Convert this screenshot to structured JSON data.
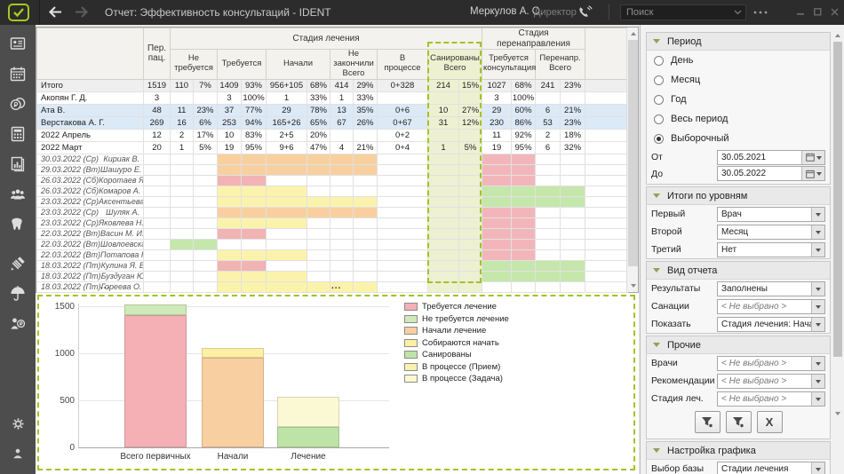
{
  "topbar": {
    "title": "Отчет: Эффективность консультаций  -  IDENT",
    "user_name": "Меркулов А. О.",
    "user_role": "Директор",
    "search_placeholder": "Поиск"
  },
  "sidebar": {
    "items": [
      "patient-card",
      "calendar",
      "payments",
      "calculator",
      "reports",
      "staff",
      "tooth",
      "implant",
      "insurance",
      "salary",
      "settings",
      "profile"
    ]
  },
  "table": {
    "palette": {
      "orange": "#f8d0a0",
      "red": "#f1b3b3",
      "yellow": "#fbf3ab",
      "green": "#c5e7ab",
      "pink": "#f2b6ba",
      "sanitized": "#edf1d2",
      "blue_row": "#dce9f7",
      "total_row": "#efefef",
      "dashed_highlight": "#9fc520"
    },
    "headers": {
      "perpats": "Пер.\nпац.",
      "stage_treatment": "Стадия лечения",
      "stage_redirect": "Стадия перенаправления",
      "columns": [
        {
          "label": "Не требуется",
          "span": 2
        },
        {
          "label": "Требуется",
          "span": 2
        },
        {
          "label": "Начали",
          "span": 2
        },
        {
          "label": "Не закончили\nВсего",
          "span": 2
        },
        {
          "label": "В\nпроцессе",
          "span": 1
        },
        {
          "label": "Санированы\nВсего",
          "span": 2,
          "san": true
        },
        {
          "label": "Требуется\nконсультация",
          "span": 2
        },
        {
          "label": "Перенапр.\nВсего",
          "span": 2
        }
      ]
    },
    "summary_rows": [
      {
        "label": "Итого",
        "bg": "total",
        "values": [
          "1519",
          "110",
          "7%",
          "1409",
          "93%",
          "956+105",
          "68%",
          "414",
          "29%",
          "0+328",
          "214",
          "15%",
          "1027",
          "68%",
          "241",
          "23%"
        ]
      },
      {
        "label": "Акопян Г. Д.",
        "bg": null,
        "values": [
          "3",
          "",
          "",
          "3",
          "100%",
          "1",
          "33%",
          "1",
          "33%",
          "",
          "",
          "",
          "3",
          "100%",
          "",
          ""
        ]
      },
      {
        "label": "Ата В.",
        "bg": "blue",
        "values": [
          "48",
          "11",
          "23%",
          "37",
          "77%",
          "29",
          "78%",
          "13",
          "35%",
          "0+6",
          "10",
          "27%",
          "29",
          "60%",
          "6",
          "21%"
        ]
      },
      {
        "label": "Верстакова А. Г.",
        "bg": "blue",
        "values": [
          "269",
          "16",
          "6%",
          "253",
          "94%",
          "165+26",
          "65%",
          "67",
          "26%",
          "0+67",
          "31",
          "12%",
          "230",
          "86%",
          "53",
          "23%"
        ]
      },
      {
        "label": "2022 Апрель",
        "bg": null,
        "values": [
          "12",
          "2",
          "17%",
          "10",
          "83%",
          "2+5",
          "20%",
          "",
          "",
          "0+2",
          "",
          "",
          "11",
          "92%",
          "2",
          "18%"
        ]
      },
      {
        "label": "2022 Март",
        "bg": null,
        "values": [
          "20",
          "1",
          "5%",
          "19",
          "95%",
          "9+6",
          "47%",
          "4",
          "21%",
          "0+4",
          "1",
          "5%",
          "19",
          "95%",
          "6",
          "32%"
        ]
      }
    ],
    "date_rows": [
      {
        "date": "30.03.2022 (Ср)",
        "doctor": "Кириак В.",
        "bands": [
          {
            "from": 3,
            "to": 8,
            "color": "orange"
          },
          {
            "from": 12,
            "to": 13,
            "color": "pink"
          }
        ]
      },
      {
        "date": "29.03.2022 (Вт)",
        "doctor": "Шашуро Е.",
        "bands": [
          {
            "from": 3,
            "to": 8,
            "color": "orange"
          },
          {
            "from": 12,
            "to": 13,
            "color": "pink"
          }
        ]
      },
      {
        "date": "26.03.2022 (Сб)",
        "doctor": "Коротаев Я. Р.",
        "bands": [
          {
            "from": 3,
            "to": 4,
            "color": "red"
          },
          {
            "from": 12,
            "to": 13,
            "color": "pink"
          }
        ]
      },
      {
        "date": "26.03.2022 (Сб)",
        "doctor": "Комаров А. С.",
        "bands": [
          {
            "from": 3,
            "to": 5,
            "color": "yellow"
          },
          {
            "from": 12,
            "to": 15,
            "color": "green"
          }
        ]
      },
      {
        "date": "23.03.2022 (Ср)",
        "doctor": "Аксентьева К. И.",
        "bands": [
          {
            "from": 3,
            "to": 8,
            "color": "yellow"
          },
          {
            "from": 12,
            "to": 15,
            "color": "green"
          }
        ]
      },
      {
        "date": "23.03.2022 (Ср)",
        "doctor": "Шуляк А.",
        "bands": [
          {
            "from": 3,
            "to": 8,
            "color": "orange"
          },
          {
            "from": 12,
            "to": 13,
            "color": "pink"
          }
        ]
      },
      {
        "date": "23.03.2022 (Ср)",
        "doctor": "Яковлева Н.",
        "bands": [
          {
            "from": 3,
            "to": 5,
            "color": "yellow"
          },
          {
            "from": 12,
            "to": 13,
            "color": "pink"
          }
        ]
      },
      {
        "date": "22.03.2022 (Вт)",
        "doctor": "Васин М. И.",
        "bands": [
          {
            "from": 3,
            "to": 4,
            "color": "red"
          },
          {
            "from": 12,
            "to": 13,
            "color": "pink"
          }
        ]
      },
      {
        "date": "22.03.2022 (Вт)",
        "doctor": "Шовлоевская К. С.",
        "bands": [
          {
            "from": 1,
            "to": 2,
            "color": "green"
          },
          {
            "from": 12,
            "to": 13,
            "color": "pink"
          }
        ]
      },
      {
        "date": "22.03.2022 (Вт)",
        "doctor": "Потапова К. В.",
        "bands": [
          {
            "from": 3,
            "to": 5,
            "color": "yellow"
          },
          {
            "from": 12,
            "to": 13,
            "color": "pink"
          }
        ]
      },
      {
        "date": "18.03.2022 (Пт)",
        "doctor": "Кулина Я. В.",
        "bands": [
          {
            "from": 3,
            "to": 4,
            "color": "red"
          },
          {
            "from": 12,
            "to": 15,
            "color": "green"
          }
        ]
      },
      {
        "date": "18.03.2022 (Пт)",
        "doctor": "Буздуган Ю. О.",
        "bands": [
          {
            "from": 3,
            "to": 5,
            "color": "yellow"
          },
          {
            "from": 12,
            "to": 15,
            "color": "green"
          }
        ]
      },
      {
        "date": "18.03.2022 (Пт)",
        "doctor": "Гореева О. А.",
        "bands": [
          {
            "from": 3,
            "to": 8,
            "color": "yellow"
          }
        ]
      }
    ],
    "truncation_indicator": "..."
  },
  "chart_data": {
    "type": "stacked-bar",
    "categories": [
      "Всего первичных",
      "Начали",
      "Лечение"
    ],
    "yticks": [
      0,
      500,
      1000,
      1500
    ],
    "ylim": [
      0,
      1500
    ],
    "grid": true,
    "legend_position": "top-right",
    "legend": [
      {
        "name": "Требуется лечение",
        "color": "#f4b0b5"
      },
      {
        "name": "Не требуется лечение",
        "color": "#cfe9b9"
      },
      {
        "name": "Начали лечение",
        "color": "#f8cfa0"
      },
      {
        "name": "Собираются начать",
        "color": "#fdefa5"
      },
      {
        "name": "Санированы",
        "color": "#bee3a7"
      },
      {
        "name": "В процессе (Прием)",
        "color": "#f7f2ae"
      },
      {
        "name": "В процессе (Задача)",
        "color": "#fbf9d3"
      }
    ],
    "bars": [
      {
        "category": "Всего первичных",
        "segments": [
          {
            "series": "Требуется лечение",
            "value": 1409
          },
          {
            "series": "Не требуется лечение",
            "value": 110
          }
        ]
      },
      {
        "category": "Начали",
        "segments": [
          {
            "series": "Начали лечение",
            "value": 956
          },
          {
            "series": "Собираются начать",
            "value": 105
          }
        ]
      },
      {
        "category": "Лечение",
        "segments": [
          {
            "series": "Санированы",
            "value": 214
          },
          {
            "series": "В процессе (Задача)",
            "value": 328
          }
        ]
      }
    ]
  },
  "panel": {
    "period": {
      "title": "Период",
      "radios": [
        {
          "label": "День",
          "checked": false
        },
        {
          "label": "Месяц",
          "checked": false
        },
        {
          "label": "Год",
          "checked": false
        },
        {
          "label": "Весь период",
          "checked": false
        },
        {
          "label": "Выборочный",
          "checked": true
        }
      ],
      "from_label": "От",
      "from_value": "30.05.2021",
      "to_label": "До",
      "to_value": "30.05.2022"
    },
    "levels": {
      "title": "Итоги по уровням",
      "rows": [
        {
          "label": "Первый",
          "value": "Врач"
        },
        {
          "label": "Второй",
          "value": "Месяц"
        },
        {
          "label": "Третий",
          "value": "Нет"
        }
      ]
    },
    "view": {
      "title": "Вид отчета",
      "rows": [
        {
          "label": "Результаты",
          "value": "Заполнены"
        },
        {
          "label": "Санации",
          "value": "< Не выбрано >"
        },
        {
          "label": "Показать",
          "value": "Стадия лечения: Начали"
        }
      ]
    },
    "other": {
      "title": "Прочие",
      "rows": [
        {
          "label": "Врачи",
          "value": "< Не выбрано >"
        },
        {
          "label": "Рекомендации",
          "value": "< Не выбрано >"
        },
        {
          "label": "Стадия леч.",
          "value": "< Не выбрано >"
        }
      ],
      "export_label": "X"
    },
    "chart_settings": {
      "title": "Настройка графика",
      "rows": [
        {
          "label": "Выбор базы",
          "value": "Стадии лечения"
        }
      ]
    }
  }
}
